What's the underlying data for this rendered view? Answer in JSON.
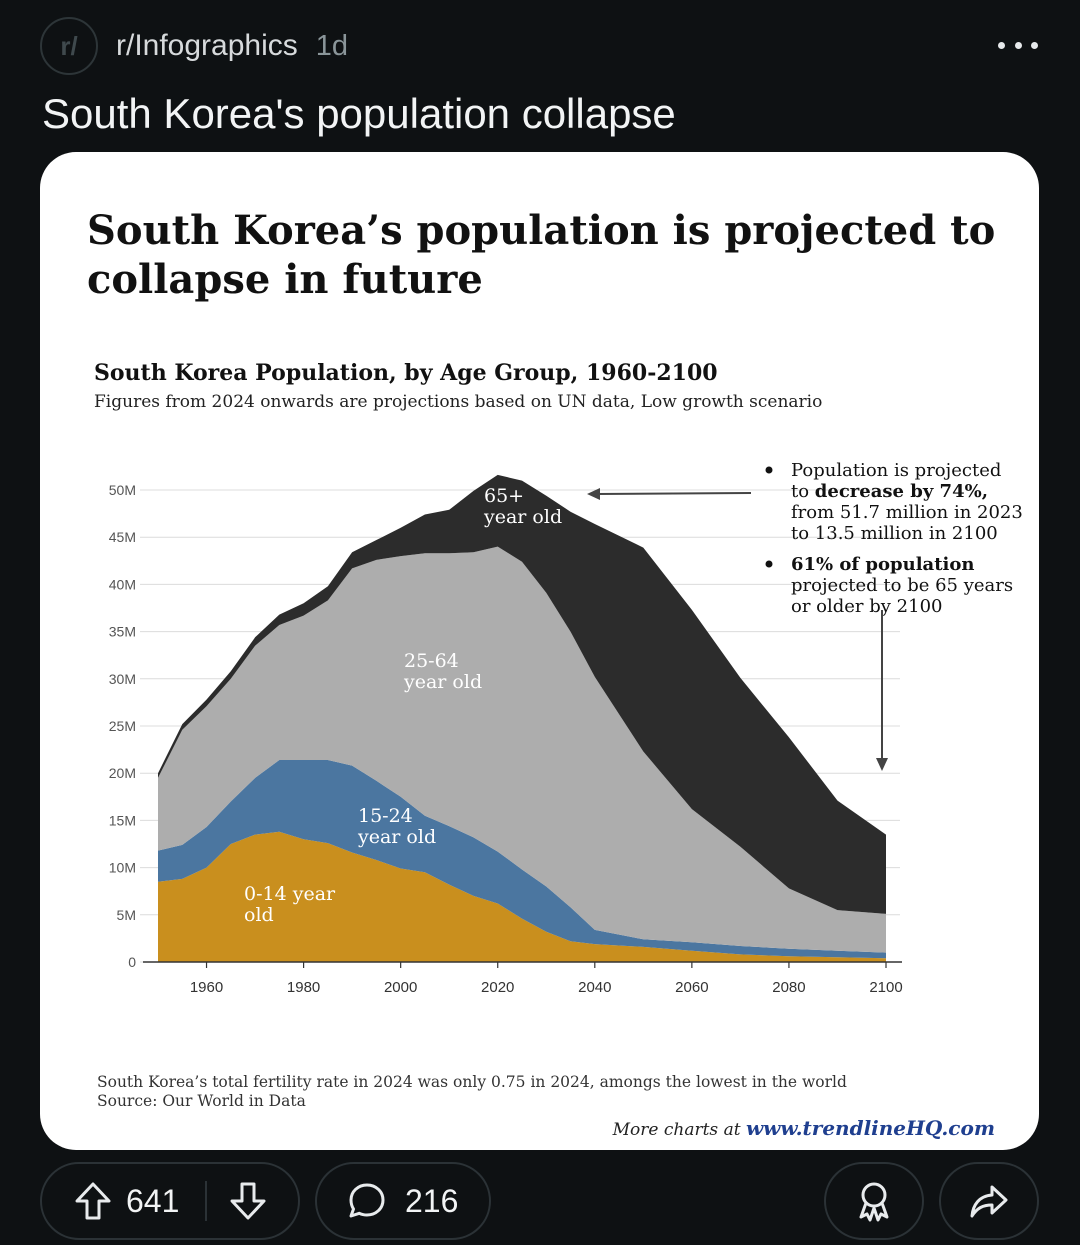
{
  "post": {
    "avatar_text": "r/",
    "subreddit": "r/Infographics",
    "age": "1d",
    "title": "South Korea's population collapse"
  },
  "infographic": {
    "headline_line1": "South Korea’s population is projected to",
    "headline_line2": "collapse in future",
    "notes": [
      {
        "parts": [
          {
            "text": "Population is projected",
            "bold": false
          },
          {
            "text": "to ",
            "bold": false,
            "line": 2
          },
          {
            "text": "decrease by 74%,",
            "bold": true
          },
          {
            "text": "from 51.7 million in 2023",
            "bold": false,
            "line": 3
          },
          {
            "text": "to 13.5 million in 2100",
            "bold": false,
            "line": 4
          }
        ]
      },
      {
        "parts": [
          {
            "text": "61% of population",
            "bold": true
          },
          {
            "text": "projected to be 65 years",
            "bold": false,
            "line": 2
          },
          {
            "text": "or older by 2100",
            "bold": false,
            "line": 3
          }
        ]
      }
    ],
    "footer_note": "South Korea’s total fertility rate in 2024 was only 0.75 in 2024, amongs the lowest in the world",
    "footer_source": "Source: Our World in Data",
    "more_charts_prefix": "More charts at",
    "more_charts_link": "www.trendlineHQ.com",
    "colors": {
      "age_0_14": "#c98f1e",
      "age_15_24": "#4b76a0",
      "age_25_64": "#adadad",
      "age_65_plus": "#2c2c2c",
      "link": "#1f3f8f"
    }
  },
  "chart_data": {
    "type": "area",
    "title": "South Korea Population, by Age Group, 1960-2100",
    "subtitle": "Figures from 2024 onwards are projections based on UN data, Low growth scenario",
    "xlabel": "",
    "ylabel": "",
    "stacked": true,
    "x": [
      1950,
      1955,
      1960,
      1965,
      1970,
      1975,
      1980,
      1985,
      1990,
      1995,
      2000,
      2005,
      2010,
      2015,
      2020,
      2025,
      2030,
      2035,
      2040,
      2050,
      2060,
      2070,
      2080,
      2090,
      2100
    ],
    "series": [
      {
        "name": "0-14 year old",
        "values": [
          8.5,
          8.8,
          10.0,
          12.5,
          13.5,
          13.8,
          13.0,
          12.6,
          11.6,
          10.8,
          9.9,
          9.5,
          8.2,
          7.0,
          6.2,
          4.6,
          3.2,
          2.2,
          1.9,
          1.6,
          1.2,
          0.8,
          0.6,
          0.5,
          0.4
        ]
      },
      {
        "name": "15-24 year old",
        "values": [
          3.3,
          3.6,
          4.3,
          4.5,
          6.0,
          7.6,
          8.4,
          8.8,
          9.2,
          8.4,
          7.6,
          6.0,
          6.2,
          6.2,
          5.5,
          5.2,
          4.8,
          3.6,
          1.5,
          0.8,
          0.9,
          0.9,
          0.8,
          0.7,
          0.6
        ]
      },
      {
        "name": "25-64 year old",
        "values": [
          7.7,
          12.2,
          12.8,
          13.0,
          14.0,
          14.3,
          15.3,
          16.9,
          20.9,
          23.4,
          25.5,
          27.8,
          28.9,
          30.2,
          32.3,
          32.6,
          31.1,
          29.2,
          26.8,
          19.9,
          14.1,
          10.5,
          6.4,
          4.3,
          4.1
        ]
      },
      {
        "name": "65+ year old",
        "values": [
          0.5,
          0.6,
          0.7,
          0.8,
          0.9,
          1.1,
          1.3,
          1.5,
          1.7,
          2.1,
          3.0,
          4.1,
          4.6,
          6.5,
          7.6,
          8.6,
          10.3,
          12.7,
          16.2,
          21.6,
          21.1,
          17.9,
          16.0,
          11.6,
          8.4
        ]
      }
    ],
    "series_labels": [
      {
        "line1": "0-14 year",
        "line2": "old"
      },
      {
        "line1": "15-24",
        "line2": "year old"
      },
      {
        "line1": "25-64",
        "line2": "year old"
      },
      {
        "line1": "65+",
        "line2": "year old"
      }
    ],
    "ylim": [
      0,
      50
    ],
    "yticks": [
      0,
      5,
      10,
      15,
      20,
      25,
      30,
      35,
      40,
      45,
      50
    ],
    "ytick_labels": [
      "0",
      "5M",
      "10M",
      "15M",
      "20M",
      "25M",
      "30M",
      "35M",
      "40M",
      "45M",
      "50M"
    ],
    "xticks": [
      1960,
      1980,
      2000,
      2020,
      2040,
      2060,
      2080,
      2100
    ],
    "xlim": [
      1950,
      2100
    ],
    "grid": true
  },
  "actions": {
    "upvotes": "641",
    "comments": "216"
  }
}
